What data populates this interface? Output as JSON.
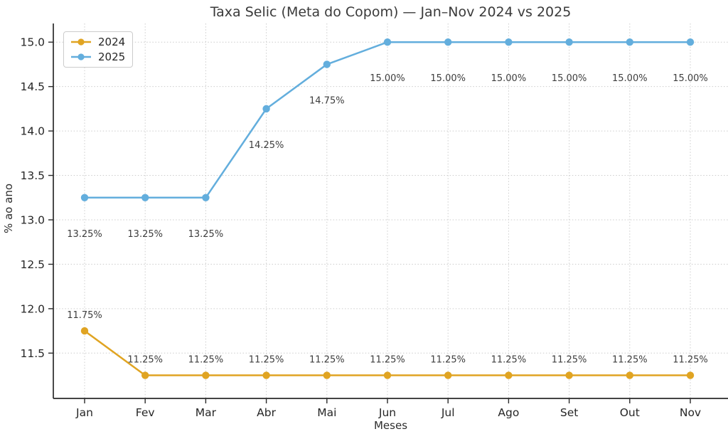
{
  "chart_data": {
    "type": "line",
    "title": "Taxa Selic (Meta do Copom) — Jan–Nov 2024 vs 2025",
    "xlabel": "Meses",
    "ylabel": "% ao ano",
    "categories": [
      "Jan",
      "Fev",
      "Mar",
      "Abr",
      "Mai",
      "Jun",
      "Jul",
      "Ago",
      "Set",
      "Out",
      "Nov"
    ],
    "yticks": [
      11.5,
      12.0,
      12.5,
      13.0,
      13.5,
      14.0,
      14.5,
      15.0
    ],
    "ytick_labels": [
      "11.5",
      "12.0",
      "12.5",
      "13.0",
      "13.5",
      "14.0",
      "14.5",
      "15.0"
    ],
    "ylim": [
      10.99,
      15.21
    ],
    "grid": true,
    "grid_style": "dotted",
    "legend_position": "upper left",
    "colors": {
      "grid": "#cccccc",
      "spine": "#2a2a2a",
      "text": "#262626"
    },
    "series": [
      {
        "name": "2024",
        "color": "#E0A422",
        "values": [
          11.75,
          11.25,
          11.25,
          11.25,
          11.25,
          11.25,
          11.25,
          11.25,
          11.25,
          11.25,
          11.25
        ],
        "labels": [
          "11.75%",
          "11.25%",
          "11.25%",
          "11.25%",
          "11.25%",
          "11.25%",
          "11.25%",
          "11.25%",
          "11.25%",
          "11.25%",
          "11.25%"
        ],
        "label_position": "above"
      },
      {
        "name": "2025",
        "color": "#63AEDD",
        "values": [
          13.25,
          13.25,
          13.25,
          14.25,
          14.75,
          15.0,
          15.0,
          15.0,
          15.0,
          15.0,
          15.0
        ],
        "labels": [
          "13.25%",
          "13.25%",
          "13.25%",
          "14.25%",
          "14.75%",
          "15.00%",
          "15.00%",
          "15.00%",
          "15.00%",
          "15.00%",
          "15.00%"
        ],
        "label_position": "below"
      }
    ]
  }
}
